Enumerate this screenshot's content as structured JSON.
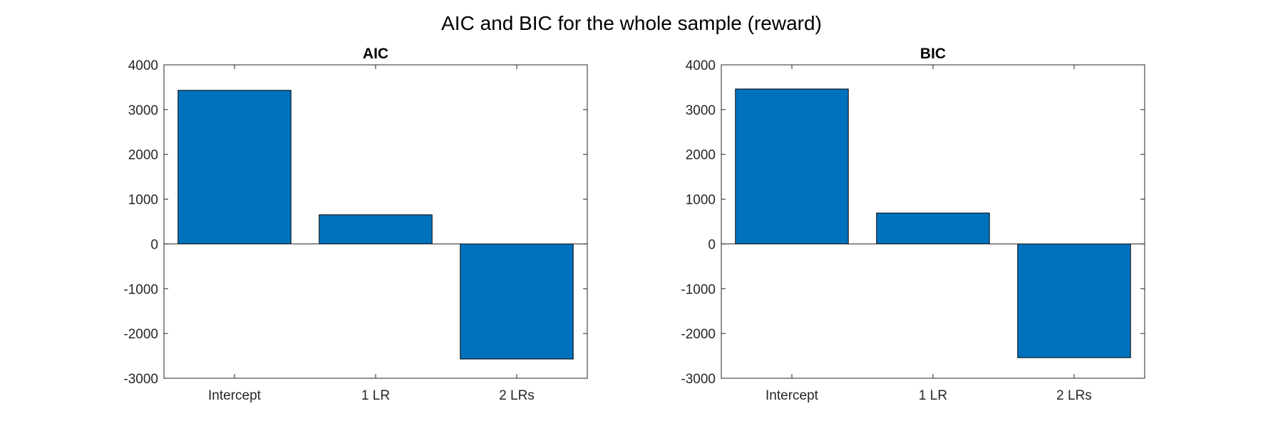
{
  "figure": {
    "title": "AIC and BIC for the whole sample (reward)"
  },
  "colors": {
    "bar_fill": "#0072BD",
    "bar_edge": "#000000",
    "axis": "#262626",
    "background": "#ffffff"
  },
  "chart_data": [
    {
      "type": "bar",
      "title": "AIC",
      "xlabel": "",
      "ylabel": "",
      "categories": [
        "Intercept",
        "1 LR",
        "2 LRs"
      ],
      "values": [
        3430,
        650,
        -2570
      ],
      "ylim": [
        -3000,
        4000
      ],
      "yticks": [
        4000,
        3000,
        2000,
        1000,
        0,
        -1000,
        -2000,
        -3000
      ],
      "grid": false,
      "legend": "none"
    },
    {
      "type": "bar",
      "title": "BIC",
      "xlabel": "",
      "ylabel": "",
      "categories": [
        "Intercept",
        "1 LR",
        "2 LRs"
      ],
      "values": [
        3460,
        690,
        -2540
      ],
      "ylim": [
        -3000,
        4000
      ],
      "yticks": [
        4000,
        3000,
        2000,
        1000,
        0,
        -1000,
        -2000,
        -3000
      ],
      "grid": false,
      "legend": "none"
    }
  ]
}
